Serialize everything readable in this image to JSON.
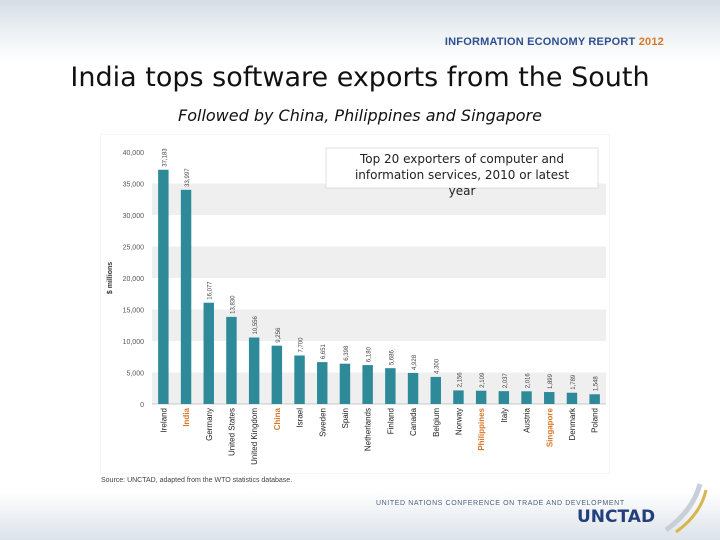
{
  "header": {
    "report_name": "INFORMATION ECONOMY REPORT",
    "report_year": "2012"
  },
  "slide": {
    "title": "India tops software exports from the South",
    "subtitle": "Followed by China, Philippines and Singapore"
  },
  "footer": {
    "source": "Source: UNCTAD, adapted from the WTO statistics database.",
    "org_full_name": "UNITED NATIONS CONFERENCE ON TRADE AND DEVELOPMENT",
    "org_short_name": "UNCTAD"
  },
  "colors": {
    "bar": "#2e8a99",
    "highlight_label": "#d9782a",
    "normal_label": "#222222",
    "band": "#efefef"
  },
  "chart_data": {
    "type": "bar",
    "title": "Top 20 exporters of computer and information services, 2010 or latest year",
    "ylabel": "$ millions",
    "xlabel": "",
    "ylim": [
      0,
      40000
    ],
    "yticks": [
      0,
      5000,
      10000,
      15000,
      20000,
      25000,
      30000,
      35000,
      40000
    ],
    "ytick_labels": [
      "0",
      "5,000",
      "10,000",
      "15,000",
      "20,000",
      "25,000",
      "30,000",
      "35,000",
      "40,000"
    ],
    "grid": "horizontal bands",
    "categories": [
      "Ireland",
      "India",
      "Germany",
      "United States",
      "United Kingdom",
      "China",
      "Israel",
      "Sweden",
      "Spain",
      "Netherlands",
      "Finland",
      "Canada",
      "Belgium",
      "Norway",
      "Philippines",
      "Italy",
      "Austria",
      "Singapore",
      "Denmark",
      "Poland"
    ],
    "values": [
      37183,
      33997,
      16077,
      13830,
      10556,
      9256,
      7700,
      6651,
      6398,
      6180,
      5686,
      4928,
      4300,
      2156,
      2109,
      2037,
      2016,
      1899,
      1789,
      1548
    ],
    "value_labels": [
      "37,183",
      "33,997",
      "16,077",
      "13,830",
      "10,556",
      "9,256",
      "7,700",
      "6,651",
      "6,398",
      "6,180",
      "5,686",
      "4,928",
      "4,300",
      "2,156",
      "2,109",
      "2,037",
      "2,016",
      "1,899",
      "1,789",
      "1,548"
    ],
    "highlighted": [
      "India",
      "China",
      "Philippines",
      "Singapore"
    ]
  }
}
